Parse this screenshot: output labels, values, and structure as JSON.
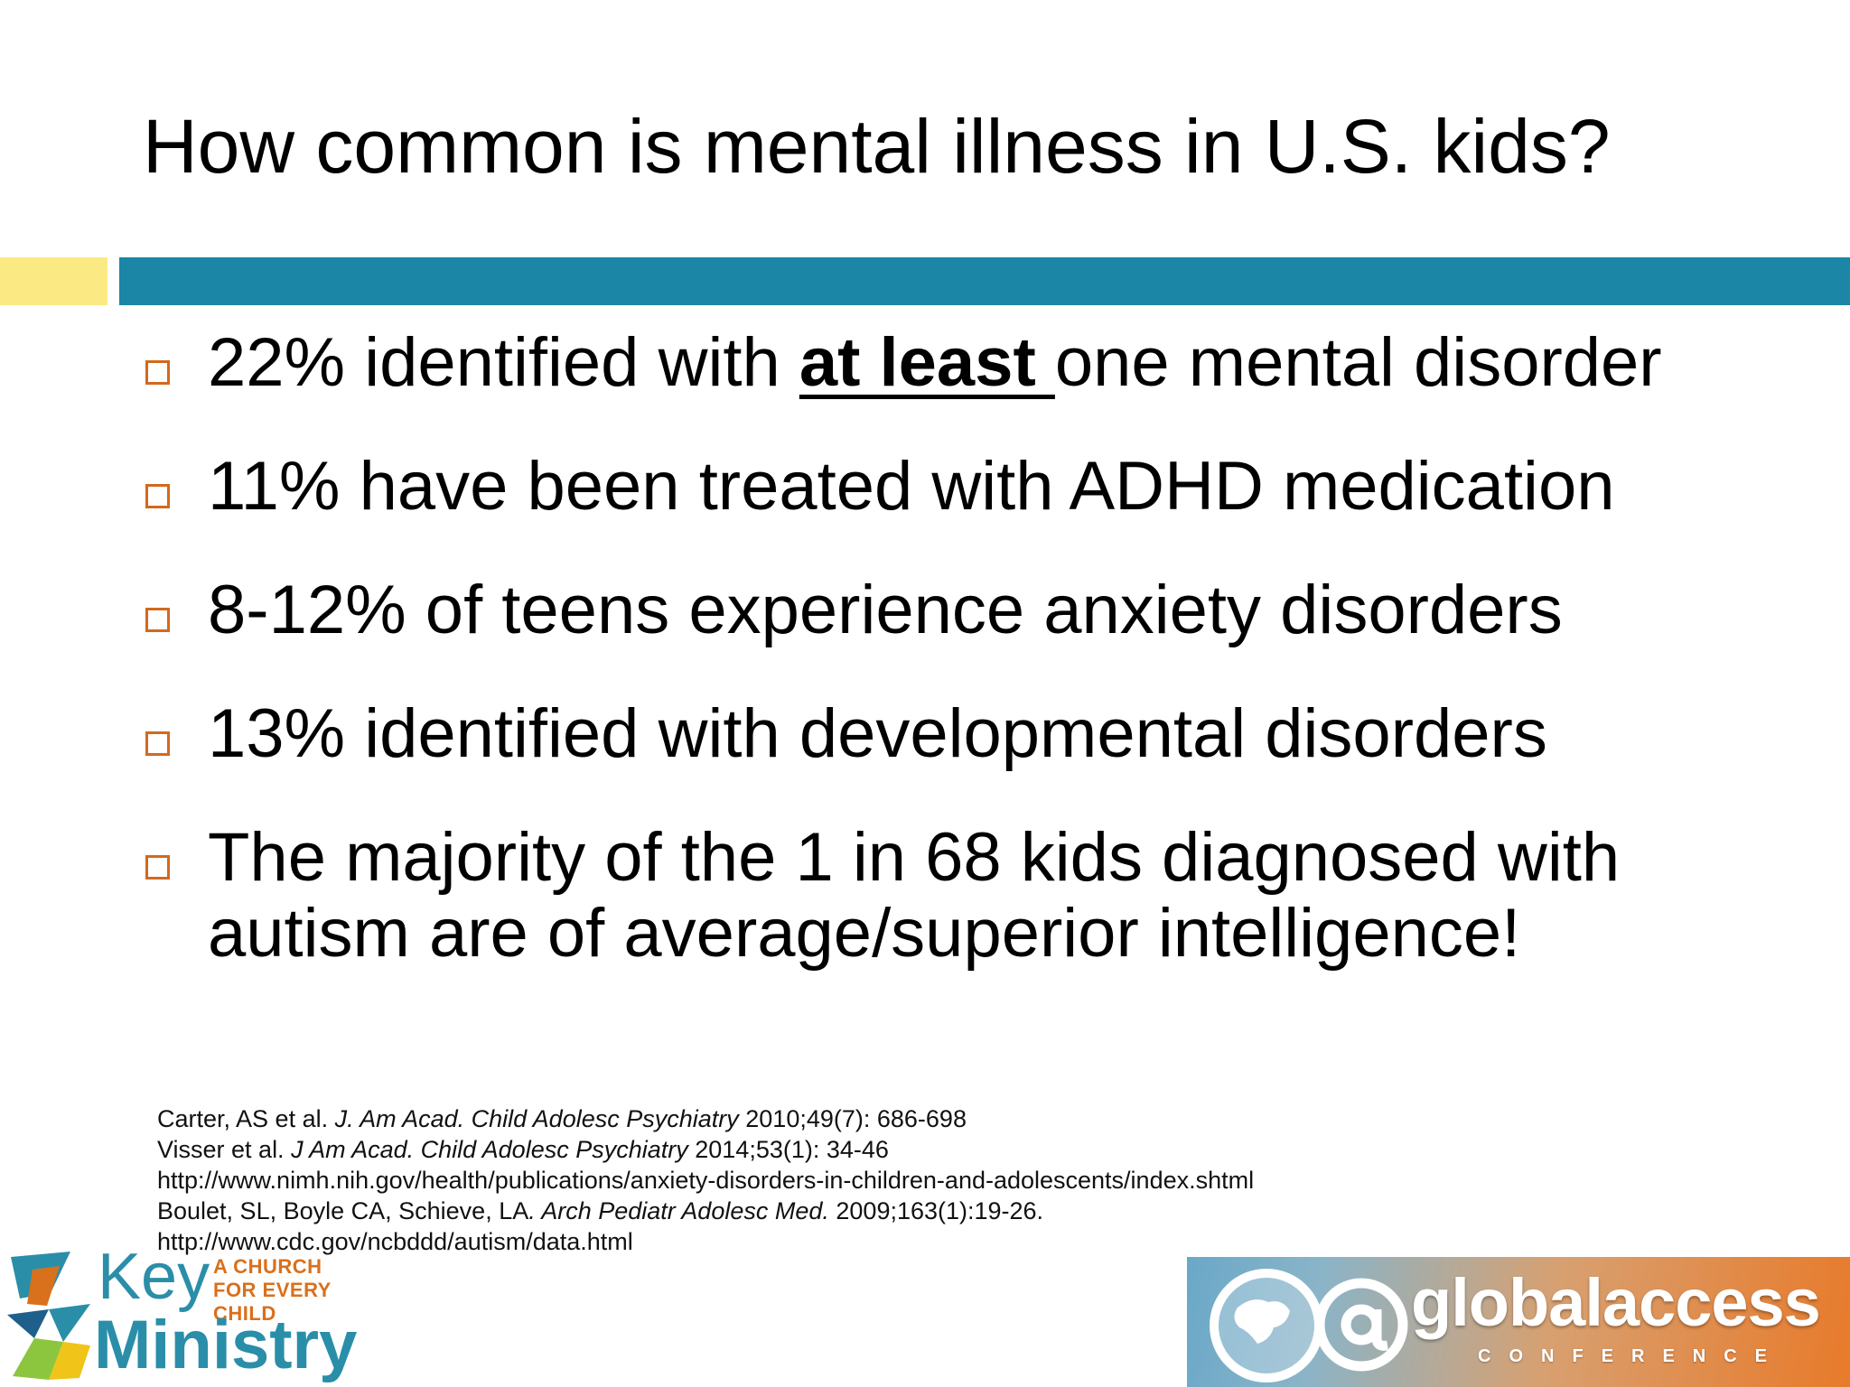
{
  "slide": {
    "title": "How common is mental illness in U.S. kids?"
  },
  "colors": {
    "accent_yellow": "#fbe983",
    "accent_blue": "#1b86a5",
    "bullet_orange": "#d2691e"
  },
  "bullets": [
    {
      "before": "22% identified with ",
      "emphasis": "at least ",
      "after": "one mental disorder"
    },
    {
      "text": "11% have been treated with ADHD medication"
    },
    {
      "text": "8-12% of teens experience anxiety disorders"
    },
    {
      "text": "13% identified with developmental disorders"
    },
    {
      "line1": "The majority of the 1 in 68 kids diagnosed with",
      "line2": "autism are of average/superior intelligence!"
    }
  ],
  "references": [
    {
      "authors": "Carter, AS et al. ",
      "journal": "J. Am Acad. Child Adolesc Psychiatry",
      "details": " 2010;49(7): 686-698"
    },
    {
      "authors": "Visser et al. ",
      "journal": "J Am Acad. Child Adolesc Psychiatry",
      "details": " 2014;53(1): 34-46"
    },
    {
      "text": "http://www.nimh.nih.gov/health/publications/anxiety-disorders-in-children-and-adolescents/index.shtml"
    },
    {
      "authors": "Boulet, SL, Boyle CA, Schieve, LA",
      "journal": ". Arch Pediatr Adolesc Med.",
      "details": " 2009;163(1):19-26."
    },
    {
      "text": "http://www.cdc.gov/ncbddd/autism/data.html"
    }
  ],
  "logos": {
    "key_ministry": {
      "word1": "Key",
      "tagline_line1": "A CHURCH",
      "tagline_line2": "FOR EVERY CHILD",
      "word2": "Ministry",
      "icon": "key-ministry-mark-icon"
    },
    "global_access": {
      "icons": [
        "globe-icon",
        "at-sign-icon"
      ],
      "at_symbol": "@",
      "word": "globalaccess",
      "subword": "CONFERENCE"
    }
  }
}
